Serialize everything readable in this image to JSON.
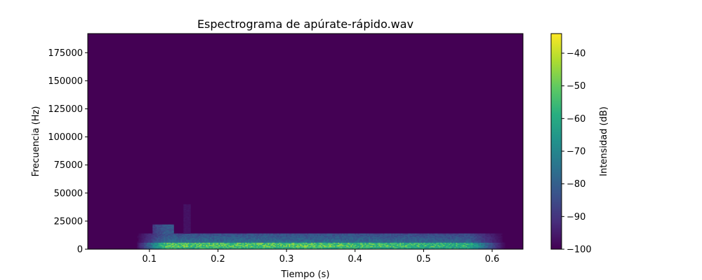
{
  "chart_data": {
    "type": "heatmap",
    "title": "Espectrograma de apúrate-rápido.wav",
    "xlabel": "Tiempo (s)",
    "ylabel": "Frecuencia (Hz)",
    "xlim": [
      0.01,
      0.645
    ],
    "ylim": [
      0,
      192000
    ],
    "x_ticks": [
      0.1,
      0.2,
      0.3,
      0.4,
      0.5,
      0.6
    ],
    "x_tick_labels": [
      "0.1",
      "0.2",
      "0.3",
      "0.4",
      "0.5",
      "0.6"
    ],
    "y_ticks": [
      0,
      25000,
      50000,
      75000,
      100000,
      125000,
      150000,
      175000
    ],
    "y_tick_labels": [
      "0",
      "25000",
      "50000",
      "75000",
      "100000",
      "125000",
      "150000",
      "175000"
    ],
    "colorbar": {
      "label": "Intensidad (dB)",
      "colormap": "viridis",
      "range": [
        -100,
        -34
      ],
      "ticks": [
        -100,
        -90,
        -80,
        -70,
        -60,
        -50,
        -40
      ],
      "tick_labels": [
        "−100",
        "−90",
        "−80",
        "−70",
        "−60",
        "−50",
        "−40"
      ]
    },
    "background_db": -100,
    "signal": {
      "time_range": [
        0.08,
        0.62
      ],
      "main_band_hz": [
        0,
        14000
      ],
      "peak_hz": [
        2000,
        6000
      ],
      "peak_db": -42
    }
  }
}
